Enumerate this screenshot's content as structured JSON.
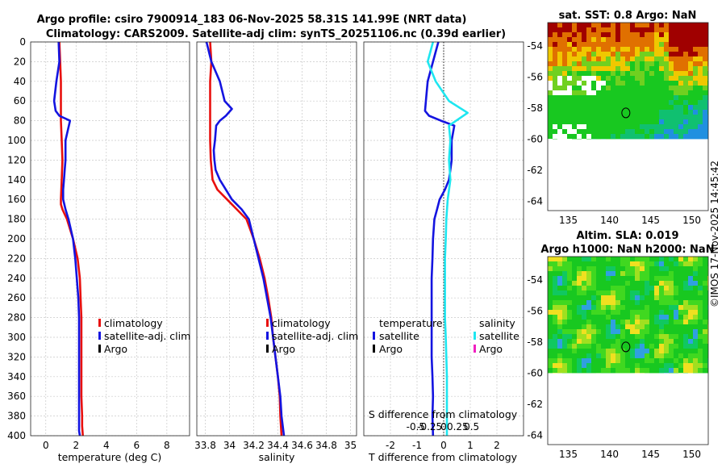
{
  "chart_data": [
    {
      "type": "line",
      "id": "temperature",
      "title": "Argo profile: csiro 7900914_183 06-Nov-2025 58.31S 141.99E (NRT data)",
      "xlabel": "temperature (deg C)",
      "xlim": [
        -1,
        9.5
      ],
      "ylim": [
        400,
        0
      ],
      "xticks": [
        "0",
        "2",
        "4",
        "6",
        "8"
      ],
      "xtick_values": [
        0,
        2,
        4,
        6,
        8
      ],
      "yticks": [
        "0",
        "20",
        "40",
        "60",
        "80",
        "100",
        "120",
        "140",
        "160",
        "180",
        "200",
        "220",
        "240",
        "260",
        "280",
        "300",
        "320",
        "340",
        "360",
        "380",
        "400"
      ],
      "ytick_values": [
        0,
        20,
        40,
        60,
        80,
        100,
        120,
        140,
        160,
        180,
        200,
        220,
        240,
        260,
        280,
        300,
        320,
        340,
        360,
        380,
        400
      ],
      "grid": true,
      "legend": [
        "climatology",
        "satellite-adj. clim",
        "Argo"
      ],
      "series": [
        {
          "name": "climatology",
          "color": "#e8100e",
          "x": [
            0.9,
            0.95,
            1.0,
            1.0,
            1.0,
            1.05,
            1.1,
            1.05,
            1.0,
            1.0,
            1.1,
            1.4,
            1.8,
            2.1,
            2.25,
            2.3,
            2.35,
            2.35,
            2.35,
            2.35,
            2.35,
            2.4,
            2.4,
            2.45
          ],
          "y": [
            0,
            20,
            40,
            60,
            80,
            100,
            120,
            140,
            160,
            165,
            170,
            180,
            200,
            220,
            240,
            260,
            280,
            300,
            320,
            340,
            360,
            380,
            390,
            400
          ]
        },
        {
          "name": "satellite-adj. clim",
          "color": "#1414e0",
          "x": [
            0.85,
            0.9,
            0.7,
            0.55,
            0.65,
            0.9,
            1.6,
            1.3,
            1.3,
            1.3,
            1.25,
            1.2,
            1.15,
            1.15,
            1.3,
            1.5,
            1.8,
            1.95,
            2.05,
            2.15,
            2.2,
            2.2,
            2.2,
            2.2,
            2.2,
            2.2,
            2.2,
            2.2,
            2.25
          ],
          "y": [
            0,
            20,
            40,
            60,
            70,
            75,
            80,
            100,
            110,
            120,
            130,
            140,
            150,
            160,
            170,
            180,
            200,
            220,
            240,
            260,
            280,
            300,
            320,
            340,
            360,
            380,
            390,
            395,
            400
          ]
        }
      ]
    },
    {
      "type": "line",
      "id": "salinity",
      "title": "Climatology: CARS2009. Satellite-adj clim: synTS_20251106.nc (0.39d earlier)",
      "xlabel": "salinity",
      "xlim": [
        33.73,
        35.05
      ],
      "ylim": [
        400,
        0
      ],
      "xticks": [
        "33.8",
        "34",
        "34.2",
        "34.4",
        "34.6",
        "34.8",
        "35"
      ],
      "xtick_values": [
        33.8,
        34.0,
        34.2,
        34.4,
        34.6,
        34.8,
        35.0
      ],
      "grid": true,
      "legend": [
        "climatology",
        "satellite-adj. clim",
        "Argo"
      ],
      "series": [
        {
          "name": "climatology",
          "color": "#e8100e",
          "x": [
            33.84,
            33.85,
            33.84,
            33.84,
            33.84,
            33.84,
            33.845,
            33.86,
            33.9,
            33.98,
            34.06,
            34.14,
            34.2,
            34.25,
            34.29,
            34.32,
            34.345,
            34.36,
            34.38,
            34.4,
            34.415,
            34.42,
            34.43
          ],
          "y": [
            0,
            20,
            40,
            60,
            80,
            100,
            120,
            140,
            150,
            160,
            170,
            180,
            200,
            220,
            240,
            260,
            280,
            300,
            320,
            340,
            360,
            380,
            400
          ]
        },
        {
          "name": "satellite-adj. clim",
          "color": "#1414e0",
          "x": [
            33.81,
            33.85,
            33.92,
            33.96,
            34.02,
            33.97,
            33.92,
            33.89,
            33.88,
            33.87,
            33.875,
            33.885,
            33.92,
            34.02,
            34.1,
            34.16,
            34.2,
            34.24,
            34.28,
            34.31,
            34.34,
            34.36,
            34.38,
            34.4,
            34.42,
            34.43,
            34.44,
            34.45
          ],
          "y": [
            0,
            20,
            40,
            60,
            68,
            75,
            80,
            85,
            100,
            110,
            120,
            130,
            140,
            160,
            170,
            180,
            200,
            220,
            240,
            260,
            280,
            300,
            320,
            340,
            360,
            380,
            390,
            400
          ]
        }
      ]
    },
    {
      "type": "line",
      "id": "difference",
      "xlabel": "T difference from climatology",
      "xlabel_top": "S difference from climatology",
      "xlim": [
        -3,
        3
      ],
      "ylim": [
        400,
        0
      ],
      "xticks": [
        "-2",
        "-1",
        "0",
        "1",
        "2"
      ],
      "xtick_values": [
        -2,
        -1,
        0,
        1,
        2
      ],
      "sticks": [
        "-0.5",
        "-0.25",
        "0",
        "0.25",
        "0.5"
      ],
      "stick_values": [
        -0.5,
        -0.25,
        0,
        0.25,
        0.5
      ],
      "grid": true,
      "legend_temperature": [
        "temperature",
        "satellite",
        "Argo"
      ],
      "legend_salinity": [
        "salinity",
        "satellite",
        "Argo"
      ],
      "series": [
        {
          "name": "temperature satellite",
          "color": "#1414e0",
          "x": [
            -0.2,
            -0.4,
            -0.6,
            -0.65,
            -0.7,
            -0.55,
            -0.1,
            0.4,
            0.3,
            0.3,
            0.3,
            0.25,
            0.2,
            0.05,
            -0.15,
            -0.25,
            -0.35,
            -0.4,
            -0.42,
            -0.45,
            -0.45,
            -0.45,
            -0.45,
            -0.45,
            -0.42,
            -0.4,
            -0.42,
            -0.4
          ],
          "y": [
            0,
            20,
            40,
            55,
            70,
            75,
            80,
            85,
            100,
            110,
            120,
            130,
            140,
            150,
            160,
            170,
            180,
            200,
            220,
            240,
            260,
            280,
            300,
            320,
            340,
            360,
            380,
            400
          ]
        },
        {
          "name": "salinity satellite",
          "color": "#1ee6f0",
          "x": [
            -0.4,
            -0.6,
            -0.3,
            0.2,
            0.9,
            0.2,
            0.25,
            0.2,
            0.25,
            0.15,
            0.1,
            0.08,
            0.05,
            0.05,
            0.05,
            0.05,
            0.08,
            0.1,
            0.12,
            0.12,
            0.12,
            0.12
          ],
          "y": [
            0,
            20,
            40,
            60,
            72,
            85,
            100,
            120,
            140,
            160,
            180,
            200,
            220,
            240,
            260,
            280,
            300,
            320,
            340,
            360,
            380,
            400
          ]
        }
      ]
    },
    {
      "type": "heatmap",
      "id": "sst-map",
      "title": "sat. SST: 0.8 Argo: NaN",
      "xlim": [
        132.5,
        152
      ],
      "ylim": [
        -64.6,
        -52.5
      ],
      "xticks": [
        "135",
        "140",
        "145",
        "150"
      ],
      "xtick_values": [
        135,
        140,
        145,
        150
      ],
      "yticks": [
        "-54",
        "-56",
        "-58",
        "-60",
        "-62",
        "-64"
      ],
      "ytick_values": [
        -54,
        -56,
        -58,
        -60,
        -62,
        -64
      ],
      "data_lat_range": [
        -60,
        -52.5
      ],
      "marker": {
        "lon": 141.99,
        "lat": -58.31
      },
      "palette": [
        "#a00000",
        "#e07000",
        "#f0c800",
        "#70d020",
        "#18c820",
        "#10c070",
        "#2090e0"
      ]
    },
    {
      "type": "heatmap",
      "id": "sla-map",
      "title": "Altim. SLA: 0.019",
      "subtitle": "Argo h1000: NaN h2000: NaN",
      "xlim": [
        132.5,
        152
      ],
      "ylim": [
        -64.6,
        -52.5
      ],
      "xticks": [
        "135",
        "140",
        "145",
        "150"
      ],
      "xtick_values": [
        135,
        140,
        145,
        150
      ],
      "yticks": [
        "-54",
        "-56",
        "-58",
        "-60",
        "-62",
        "-64"
      ],
      "ytick_values": [
        -54,
        -56,
        -58,
        -60,
        -62,
        -64
      ],
      "data_lat_range": [
        -60,
        -52.5
      ],
      "marker": {
        "lon": 141.99,
        "lat": -58.31
      },
      "palette": [
        "#f0e020",
        "#a0e020",
        "#40d820",
        "#18c820",
        "#10c860",
        "#30a0e0"
      ]
    }
  ],
  "watermark": "©IMOS 17-Nov-2025 14:45:42"
}
